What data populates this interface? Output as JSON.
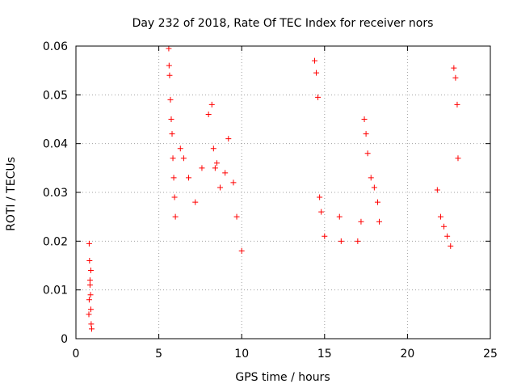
{
  "chart_data": {
    "type": "scatter",
    "title": "Day 232 of 2018, Rate Of TEC Index for receiver nors",
    "xlabel": "GPS time / hours",
    "ylabel": "ROTI / TECUs",
    "xlim": [
      0,
      25
    ],
    "ylim": [
      0,
      0.06
    ],
    "xticks": [
      0,
      5,
      10,
      15,
      20,
      25
    ],
    "xtick_labels": [
      "0",
      "5",
      "10",
      "15",
      "20",
      "25"
    ],
    "yticks": [
      0,
      0.01,
      0.02,
      0.03,
      0.04,
      0.05,
      0.06
    ],
    "ytick_labels": [
      "0",
      "0.01",
      "0.02",
      "0.03",
      "0.04",
      "0.05",
      "0.06"
    ],
    "grid": true,
    "marker": "+",
    "color": "#ff0000",
    "series": [
      {
        "name": "nors",
        "x": [
          0.8,
          0.82,
          0.85,
          0.88,
          0.9,
          0.92,
          0.95,
          0.78,
          0.8,
          0.85,
          0.9,
          5.6,
          5.62,
          5.65,
          5.7,
          5.75,
          5.8,
          5.85,
          5.9,
          5.95,
          6.0,
          6.3,
          6.5,
          6.8,
          7.2,
          7.6,
          8.0,
          8.2,
          8.3,
          8.4,
          8.5,
          8.7,
          9.0,
          9.2,
          9.5,
          9.7,
          10.0,
          14.4,
          14.5,
          14.6,
          14.7,
          14.8,
          15.0,
          15.9,
          16.0,
          17.0,
          17.2,
          17.4,
          17.5,
          17.6,
          17.8,
          18.0,
          18.2,
          18.3,
          21.8,
          22.0,
          22.2,
          22.4,
          22.6,
          22.8,
          22.9,
          23.0,
          23.05
        ],
        "y": [
          0.0195,
          0.016,
          0.012,
          0.009,
          0.006,
          0.003,
          0.002,
          0.005,
          0.008,
          0.011,
          0.014,
          0.0595,
          0.056,
          0.054,
          0.049,
          0.045,
          0.042,
          0.037,
          0.033,
          0.029,
          0.025,
          0.039,
          0.037,
          0.033,
          0.028,
          0.035,
          0.046,
          0.048,
          0.039,
          0.035,
          0.036,
          0.031,
          0.034,
          0.041,
          0.032,
          0.025,
          0.018,
          0.057,
          0.0545,
          0.0495,
          0.029,
          0.026,
          0.021,
          0.025,
          0.02,
          0.02,
          0.024,
          0.045,
          0.042,
          0.038,
          0.033,
          0.031,
          0.028,
          0.024,
          0.0305,
          0.025,
          0.023,
          0.021,
          0.019,
          0.0555,
          0.0535,
          0.048,
          0.037
        ]
      }
    ]
  }
}
